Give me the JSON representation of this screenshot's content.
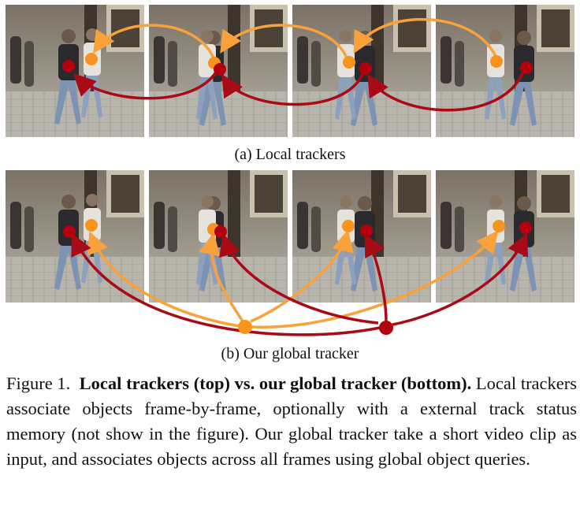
{
  "subcaption_a": "(a) Local trackers",
  "subcaption_b": "(b) Our global tracker",
  "caption": {
    "label": "Figure 1.",
    "bold": "Local trackers (top) vs. our global tracker (bottom).",
    "body": "Local trackers associate objects frame-by-frame, optionally with a external track status memory (not show in the figure). Our global tracker take a short video clip as input, and associates objects across all frames using global object queries."
  },
  "colors": {
    "orange": "#f7941d",
    "red": "#b3000f",
    "orange_stroke": "#f9a13a",
    "red_stroke": "#a80a16"
  }
}
